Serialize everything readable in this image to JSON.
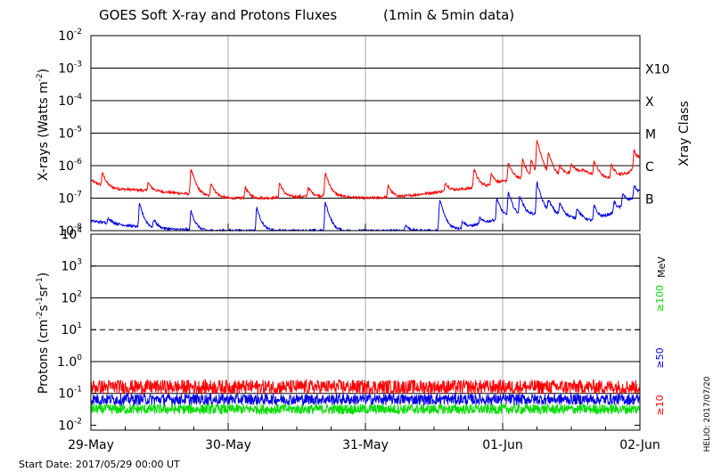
{
  "chart_data": {
    "title": "GOES Soft X-ray and Protons Fluxes",
    "subtitle": "(1min & 5min data)",
    "x_axis": {
      "ticks": [
        "29-May",
        "30-May",
        "31-May",
        "01-Jun",
        "02-Jun"
      ],
      "range": [
        "2017-05-29 00:00",
        "2017-06-02 00:00"
      ],
      "start_label": "Start Date: 2017/05/29 00:00 UT",
      "vertical_grid": true
    },
    "footer_right": "HELIO: 2017/07/20",
    "panels": [
      {
        "name": "xray",
        "type": "line",
        "ylabel": "X-rays (Watts m",
        "ylabel_sup": "-2",
        "ylabel_close": ")",
        "y_scale": "log",
        "ylim": [
          1e-08,
          0.01
        ],
        "y_ticks": [
          {
            "base": "10",
            "exp": "-2"
          },
          {
            "base": "10",
            "exp": "-3"
          },
          {
            "base": "10",
            "exp": "-4"
          },
          {
            "base": "10",
            "exp": "-5"
          },
          {
            "base": "10",
            "exp": "-6"
          },
          {
            "base": "10",
            "exp": "-7"
          },
          {
            "base": "10",
            "exp": "-8"
          }
        ],
        "right_axis_title": "Xray Class",
        "class_labels": [
          "X10",
          "X",
          "M",
          "C",
          "B"
        ],
        "series": [
          {
            "color": "#ff0000",
            "baseline": [
              [
                0,
                3.5e-07
              ],
              [
                3,
                2e-07
              ],
              [
                8,
                1.8e-07
              ],
              [
                14,
                1.5e-07
              ],
              [
                18,
                1.3e-07
              ],
              [
                24,
                1e-07
              ],
              [
                30,
                1e-07
              ],
              [
                36,
                1.1e-07
              ],
              [
                42,
                1.2e-07
              ],
              [
                48,
                1e-07
              ],
              [
                54,
                1.1e-07
              ],
              [
                60,
                1.5e-07
              ],
              [
                66,
                2e-07
              ],
              [
                70,
                2.5e-07
              ],
              [
                74,
                4e-07
              ],
              [
                78,
                3.5e-07
              ],
              [
                82,
                5e-07
              ],
              [
                86,
                7e-07
              ],
              [
                90,
                4e-07
              ],
              [
                94,
                6e-07
              ],
              [
                96,
                1.6e-06
              ]
            ],
            "peaks": [
              [
                2,
                6e-07
              ],
              [
                10,
                3e-07
              ],
              [
                17.5,
                8e-07
              ],
              [
                21,
                3e-07
              ],
              [
                27,
                2.2e-07
              ],
              [
                33,
                3e-07
              ],
              [
                38,
                2.2e-07
              ],
              [
                41,
                6e-07
              ],
              [
                52,
                2.5e-07
              ],
              [
                62,
                3e-07
              ],
              [
                67,
                8e-07
              ],
              [
                70,
                6e-07
              ],
              [
                73,
                1.2e-06
              ],
              [
                75.5,
                1.6e-06
              ],
              [
                77,
                1.5e-06
              ],
              [
                78,
                6e-06
              ],
              [
                80,
                2.5e-06
              ],
              [
                82,
                1e-06
              ],
              [
                84,
                1.2e-06
              ],
              [
                88,
                1.4e-06
              ],
              [
                91,
                1.1e-06
              ],
              [
                95,
                3e-06
              ]
            ]
          },
          {
            "color": "#0000e6",
            "baseline": [
              [
                0,
                2e-08
              ],
              [
                10,
                1.2e-08
              ],
              [
                20,
                1e-08
              ],
              [
                40,
                1e-08
              ],
              [
                60,
                1e-08
              ],
              [
                66,
                1.3e-08
              ],
              [
                72,
                2.5e-08
              ],
              [
                76,
                3e-08
              ],
              [
                80,
                3.5e-08
              ],
              [
                84,
                2.5e-08
              ],
              [
                88,
                2e-08
              ],
              [
                92,
                4e-08
              ],
              [
                96,
                1.5e-07
              ]
            ],
            "peaks": [
              [
                3,
                2.5e-08
              ],
              [
                8.5,
                6.5e-08
              ],
              [
                11,
                2.2e-08
              ],
              [
                17.5,
                4e-08
              ],
              [
                29,
                5e-08
              ],
              [
                41,
                7.5e-08
              ],
              [
                55,
                1.5e-08
              ],
              [
                61,
                9e-08
              ],
              [
                65,
                2e-08
              ],
              [
                68,
                2.5e-08
              ],
              [
                71,
                1e-07
              ],
              [
                73,
                1.5e-07
              ],
              [
                75,
                1.2e-07
              ],
              [
                78,
                3e-07
              ],
              [
                80,
                9e-08
              ],
              [
                82,
                7e-08
              ],
              [
                85,
                5e-08
              ],
              [
                88,
                6e-08
              ],
              [
                91.5,
                8e-08
              ],
              [
                93,
                1.5e-07
              ],
              [
                95,
                2.5e-07
              ]
            ]
          }
        ]
      },
      {
        "name": "protons",
        "type": "line",
        "ylabel": "Protons (cm",
        "y_scale": "log",
        "ylim": [
          0.007,
          10000
        ],
        "y_ticks": [
          {
            "base": "10",
            "exp": "4"
          },
          {
            "base": "10",
            "exp": "3"
          },
          {
            "base": "10",
            "exp": "2"
          },
          {
            "base": "10",
            "exp": "1"
          },
          {
            "base": "1.0",
            "exp": "0"
          },
          {
            "base": "10",
            "exp": "-1"
          },
          {
            "base": "10",
            "exp": "-2"
          }
        ],
        "threshold_line": 10,
        "right_unit": "MeV",
        "energy_labels": [
          {
            "label": "≥100",
            "color": "#00dd00"
          },
          {
            "label": "≥50",
            "color": "#0000e6"
          },
          {
            "label": "≥10",
            "color": "#ff0000"
          }
        ],
        "series": [
          {
            "color": "#ff0000",
            "level": 0.16,
            "spread": 0.45
          },
          {
            "color": "#0000e6",
            "level": 0.065,
            "spread": 0.35
          },
          {
            "color": "#00dd00",
            "level": 0.032,
            "spread": 0.32
          }
        ]
      }
    ]
  }
}
